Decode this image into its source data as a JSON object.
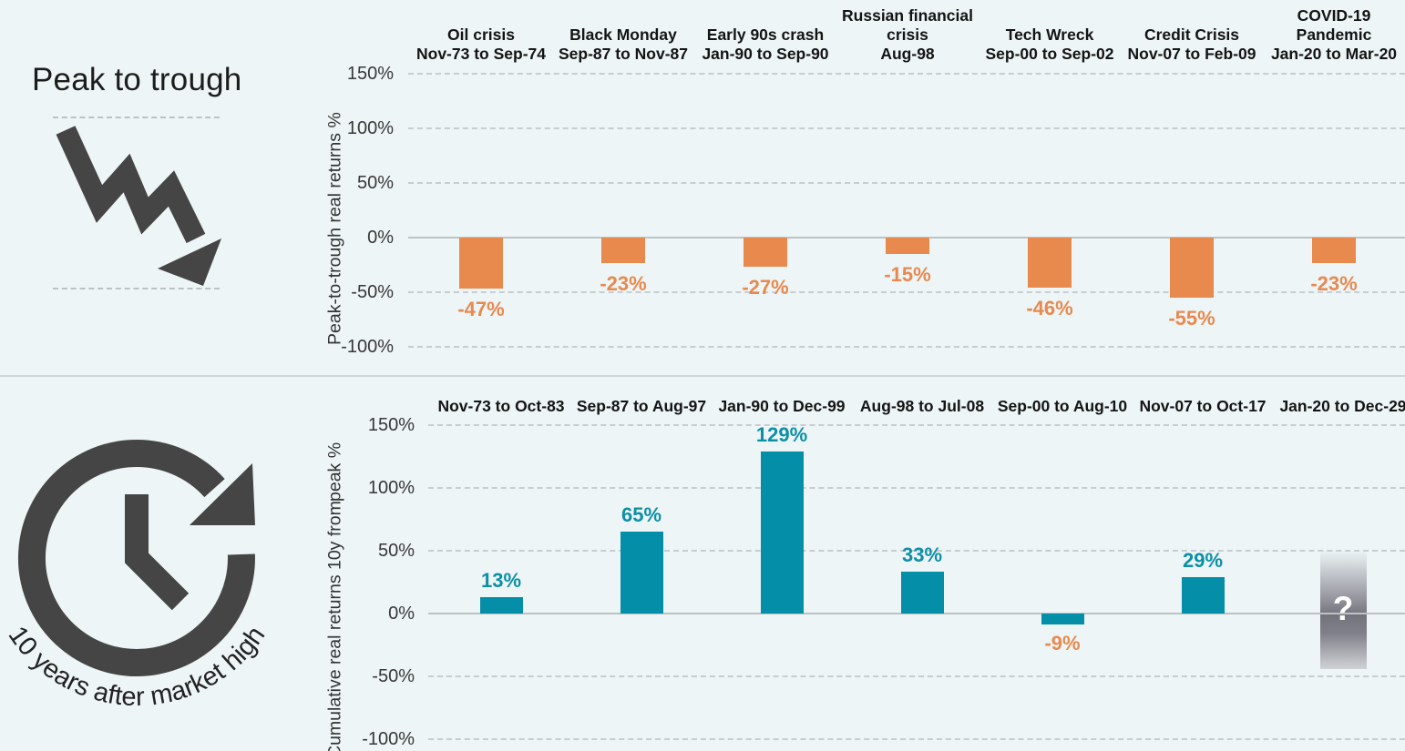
{
  "top_panel": {
    "title": "Peak to trough",
    "icon": "downtrend-zigzag-arrow-icon"
  },
  "bottom_panel": {
    "curved_label": "10 years after market high",
    "icon": "clock-history-icon"
  },
  "colors": {
    "background": "#edf5f7",
    "orange": "#e8894e",
    "teal": "#058ea8",
    "dark_icon": "#454545",
    "header_text": "#141414",
    "tick_text": "#383838",
    "grid": "#c7cdd0",
    "zero_line": "#bcc2c5",
    "unknown_dark": "#73737c",
    "unknown_light": "#d0d3d6",
    "question_mark": "#ffffff"
  },
  "chart_data": [
    {
      "type": "bar",
      "title": "Peak to trough",
      "ylabel": "Peak-to-trough real returns %",
      "ylabel_lines": [
        "Peak-to-trough real returns %"
      ],
      "ylim": [
        -100,
        150
      ],
      "grid": "dashed",
      "yticks": [
        "150%",
        "100%",
        "50%",
        "0%",
        "-50%",
        "-100%"
      ],
      "ytick_values": [
        150,
        100,
        50,
        0,
        -50,
        -100
      ],
      "bar_color": "#e8894e",
      "label_colors": {
        "positive": "#e8894e",
        "negative": "#e8894e"
      },
      "categories": [
        {
          "lines": [
            "Oil crisis"
          ],
          "period": "Nov-73 to Sep-74"
        },
        {
          "lines": [
            "Black Monday"
          ],
          "period": "Sep-87 to Nov-87"
        },
        {
          "lines": [
            "Early 90s crash"
          ],
          "period": "Jan-90 to Sep-90"
        },
        {
          "lines": [
            "Russian financial",
            "crisis"
          ],
          "period": "Aug-98"
        },
        {
          "lines": [
            "Tech Wreck"
          ],
          "period": "Sep-00 to Sep-02"
        },
        {
          "lines": [
            "Credit Crisis"
          ],
          "period": "Nov-07 to Feb-09"
        },
        {
          "lines": [
            "COVID-19",
            "Pandemic"
          ],
          "period": "Jan-20 to Mar-20"
        }
      ],
      "values": [
        -47,
        -23,
        -27,
        -15,
        -46,
        -55,
        -23
      ],
      "labels": [
        "-47%",
        "-23%",
        "-27%",
        "-15%",
        "-46%",
        "-55%",
        "-23%"
      ]
    },
    {
      "type": "bar",
      "title": "10 years after market high",
      "ylabel": "Cumulative real returns 10y from peak %",
      "ylabel_lines": [
        "Cumulative real returns 10y from",
        "peak %"
      ],
      "ylim": [
        -100,
        150
      ],
      "grid": "dashed",
      "yticks": [
        "150%",
        "100%",
        "50%",
        "0%",
        "-50%",
        "-100%"
      ],
      "ytick_values": [
        150,
        100,
        50,
        0,
        -50,
        -100
      ],
      "bar_color": "#058ea8",
      "label_colors": {
        "positive": "#0d8fa6",
        "negative": "#e8894e"
      },
      "categories": [
        {
          "lines": [],
          "period": "Nov-73 to Oct-83"
        },
        {
          "lines": [],
          "period": "Sep-87 to Aug-97"
        },
        {
          "lines": [],
          "period": "Jan-90 to Dec-99"
        },
        {
          "lines": [],
          "period": "Aug-98 to Jul-08"
        },
        {
          "lines": [],
          "period": "Sep-00 to Aug-10"
        },
        {
          "lines": [],
          "period": "Nov-07 to Oct-17"
        },
        {
          "lines": [],
          "period": "Jan-20 to Dec-29"
        }
      ],
      "values": [
        13,
        65,
        129,
        33,
        -9,
        29,
        null
      ],
      "labels": [
        "13%",
        "65%",
        "129%",
        "33%",
        "-9%",
        "29%",
        "?"
      ],
      "unknown": {
        "index": 6,
        "label": "?",
        "span_pct": [
          51,
          -44
        ]
      }
    }
  ]
}
